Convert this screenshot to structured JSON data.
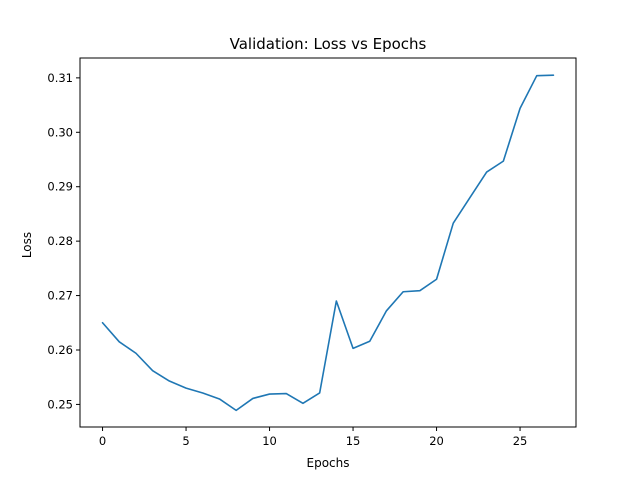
{
  "chart_data": {
    "type": "line",
    "title": "Validation: Loss vs Epochs",
    "xlabel": "Epochs",
    "ylabel": "Loss",
    "xlim": [
      -1.35,
      28.35
    ],
    "ylim": [
      0.24585,
      0.31365
    ],
    "xticks": [
      0,
      5,
      10,
      15,
      20,
      25
    ],
    "xtick_labels": [
      "0",
      "5",
      "10",
      "15",
      "20",
      "25"
    ],
    "yticks": [
      0.25,
      0.26,
      0.27,
      0.28,
      0.29,
      0.3,
      0.31
    ],
    "ytick_labels": [
      "0.25",
      "0.26",
      "0.27",
      "0.28",
      "0.29",
      "0.30",
      "0.31"
    ],
    "grid": false,
    "series": [
      {
        "color": "#1f77b4",
        "x": [
          0,
          1,
          2,
          3,
          4,
          5,
          6,
          7,
          8,
          9,
          10,
          11,
          12,
          13,
          14,
          15,
          16,
          17,
          18,
          19,
          20,
          21,
          22,
          23,
          24,
          25,
          26,
          27
        ],
        "y": [
          0.265,
          0.2615,
          0.2594,
          0.2562,
          0.2543,
          0.253,
          0.2521,
          0.251,
          0.2489,
          0.2511,
          0.2519,
          0.252,
          0.2502,
          0.2521,
          0.269,
          0.2603,
          0.2616,
          0.2672,
          0.2707,
          0.2709,
          0.273,
          0.2833,
          0.288,
          0.2927,
          0.2947,
          0.3044,
          0.3104,
          0.3105
        ]
      }
    ]
  }
}
